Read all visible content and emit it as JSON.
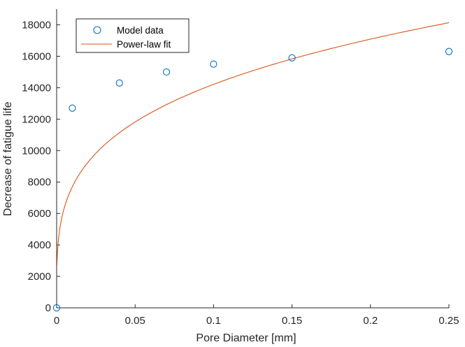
{
  "chart_data": {
    "type": "scatter",
    "xlabel": "Pore Diameter [mm]",
    "ylabel": "Decrease of fatigue life",
    "xlim": [
      0,
      0.25
    ],
    "ylim": [
      0,
      19000
    ],
    "xticks": [
      0,
      0.05,
      0.1,
      0.15,
      0.2,
      0.25
    ],
    "xtick_labels": [
      "0",
      "0.05",
      "0.1",
      "0.15",
      "0.2",
      "0.25"
    ],
    "yticks": [
      0,
      2000,
      4000,
      6000,
      8000,
      10000,
      12000,
      14000,
      16000,
      18000
    ],
    "ytick_labels": [
      "0",
      "2000",
      "4000",
      "6000",
      "8000",
      "10000",
      "12000",
      "14000",
      "16000",
      "18000"
    ],
    "grid": false,
    "legend_position": "top-left",
    "series": [
      {
        "name": "Model data",
        "type": "scatter",
        "marker": "open-circle",
        "color": "#0072BD",
        "x": [
          0,
          0.01,
          0.04,
          0.07,
          0.1,
          0.15,
          0.25
        ],
        "y": [
          0,
          12700,
          14300,
          15000,
          15500,
          15900,
          16300
        ]
      },
      {
        "name": "Power-law fit",
        "type": "line",
        "color": "#D95319",
        "function": "power",
        "a": 26220,
        "b": 0.266
      }
    ]
  }
}
